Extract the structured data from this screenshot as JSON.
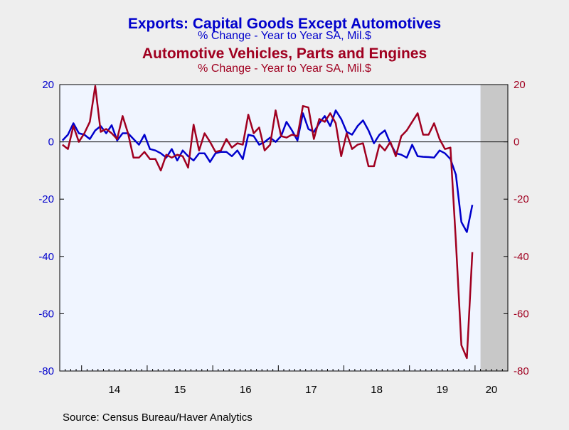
{
  "chart_data": {
    "type": "line",
    "title": "Exports: Capital Goods Except Automotives",
    "subtitle": "% Change - Year to Year    SA, Mil.$",
    "title2": "Automotive Vehicles, Parts and Engines",
    "subtitle2": "% Change - Year to Year    SA, Mil.$",
    "source": "Source:  Census Bureau/Haver Analytics",
    "x_start": "2013-09",
    "x_end": "2020-06",
    "year_labels": [
      {
        "year": 2014,
        "label": "14"
      },
      {
        "year": 2015,
        "label": "15"
      },
      {
        "year": 2016,
        "label": "16"
      },
      {
        "year": 2017,
        "label": "17"
      },
      {
        "year": 2018,
        "label": "18"
      },
      {
        "year": 2019,
        "label": "19"
      },
      {
        "year": 2020,
        "label": "20"
      }
    ],
    "ylim": [
      -80,
      20
    ],
    "yticks": [
      {
        "value": 20,
        "label": "20"
      },
      {
        "value": 0,
        "label": "0"
      },
      {
        "value": -20,
        "label": "-20"
      },
      {
        "value": -40,
        "label": "-40"
      },
      {
        "value": -60,
        "label": "-60"
      },
      {
        "value": -80,
        "label": "-80"
      }
    ],
    "recession_shade": {
      "start": "2020-02",
      "end": "2020-06"
    },
    "colors": {
      "plot_bg": "#f0f5ff",
      "shade": "#c8c8c8",
      "axis_left": "#0000cc",
      "axis_right": "#a00020"
    },
    "series": [
      {
        "name": "Exports: Capital Goods Except Automotives",
        "color": "#0000cc",
        "start": "2013-09",
        "values": [
          0.5,
          2.5,
          6.5,
          3.0,
          2.5,
          1.0,
          4.0,
          5.5,
          3.0,
          5.8,
          0.5,
          3.0,
          3.0,
          1.0,
          -1.0,
          2.5,
          -2.5,
          -3.0,
          -4.0,
          -5.5,
          -2.5,
          -6.5,
          -3.0,
          -5.0,
          -6.5,
          -4.0,
          -4.0,
          -7.0,
          -4.0,
          -3.5,
          -3.5,
          -5.0,
          -3.0,
          -6.0,
          2.5,
          2.0,
          -1.0,
          0.0,
          1.5,
          0.0,
          2.0,
          7.0,
          4.0,
          0.5,
          10.0,
          4.5,
          3.5,
          6.5,
          9.0,
          5.5,
          11.0,
          8.0,
          3.5,
          2.5,
          5.5,
          7.5,
          4.0,
          -0.5,
          2.5,
          4.0,
          -0.5,
          -4.0,
          -4.5,
          -5.5,
          -1.0,
          -5.0,
          -5.2,
          -5.3,
          -5.5,
          -3.0,
          -4.0,
          -6.0,
          -11.5,
          -28.0,
          -31.5,
          -22.0
        ]
      },
      {
        "name": "Automotive Vehicles, Parts and Engines",
        "color": "#a00020",
        "start": "2013-09",
        "values": [
          -1.0,
          -2.5,
          5.5,
          0.0,
          3.0,
          7.0,
          19.5,
          3.5,
          4.5,
          3.0,
          1.0,
          9.0,
          3.0,
          -5.5,
          -5.5,
          -3.5,
          -6.0,
          -6.0,
          -10.0,
          -4.5,
          -5.5,
          -4.5,
          -5.0,
          -9.0,
          6.0,
          -3.0,
          3.0,
          0.0,
          -3.5,
          -3.0,
          1.0,
          -2.0,
          -0.5,
          -1.0,
          9.5,
          3.0,
          5.0,
          -3.0,
          -1.0,
          11.0,
          2.0,
          1.5,
          2.5,
          2.0,
          12.5,
          12.0,
          1.0,
          8.0,
          7.0,
          10.0,
          6.5,
          -5.0,
          3.0,
          -2.5,
          -1.0,
          -0.5,
          -8.5,
          -8.5,
          -1.0,
          -3.0,
          0.0,
          -5.0,
          2.0,
          4.0,
          7.0,
          10.0,
          2.5,
          2.5,
          6.5,
          1.0,
          -2.5,
          -2.0,
          -35.0,
          -71.0,
          -75.5,
          -38.5
        ]
      }
    ]
  }
}
